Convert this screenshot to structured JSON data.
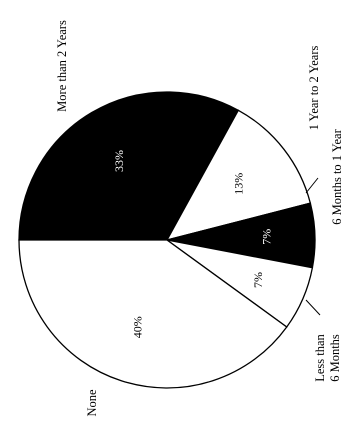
{
  "chart_data": {
    "type": "pie",
    "categories": [
      "More than 2 Years",
      "1 Year to 2 Years",
      "6 Months to 1 Year",
      "Less than 6 Months",
      "None"
    ],
    "values": [
      33,
      13,
      7,
      7,
      40
    ],
    "value_labels": [
      "33%",
      "13%",
      "7%",
      "7%",
      "40%"
    ],
    "legend": "labels outside slices",
    "colors": {
      "More than 2 Years": "#000000",
      "1 Year to 2 Years": "#ffffff",
      "6 Months to 1 Year": "#000000",
      "Less than 6 Months": "#ffffff",
      "None": "#ffffff"
    }
  },
  "labels": {
    "more_than_2_years": "More than 2 Years",
    "one_to_two_years": "1 Year to 2 Years",
    "six_months_to_1_year": "6 Months to 1 Year",
    "less_than_6_months_line1": "Less than",
    "less_than_6_months_line2": "6 Months",
    "none": "None"
  }
}
